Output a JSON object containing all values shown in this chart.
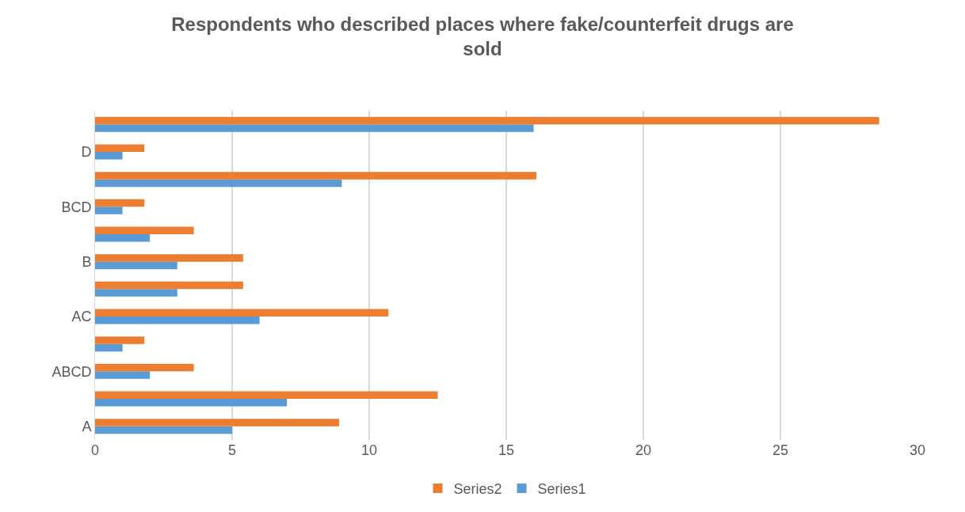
{
  "chart_data": {
    "type": "bar",
    "orientation": "horizontal",
    "title": "Respondents who described places where fake/counterfeit drugs are sold",
    "categories": [
      null,
      "D",
      null,
      "BCD",
      null,
      "B",
      null,
      "AC",
      null,
      "ABCD",
      null,
      "A"
    ],
    "series": [
      {
        "name": "Series1",
        "color": "#5b9bd5",
        "values": [
          16,
          1,
          9,
          1,
          2,
          3,
          3,
          6,
          1,
          2,
          7,
          5
        ]
      },
      {
        "name": "Series2",
        "color": "#ed7d31",
        "values": [
          28.6,
          1.8,
          16.1,
          1.8,
          3.6,
          5.4,
          5.4,
          10.7,
          1.8,
          3.6,
          12.5,
          8.9
        ]
      }
    ],
    "xlim": [
      0,
      30
    ],
    "xticks": [
      0,
      5,
      10,
      15,
      20,
      25,
      30
    ],
    "grid": "x",
    "legend": "bottom"
  }
}
